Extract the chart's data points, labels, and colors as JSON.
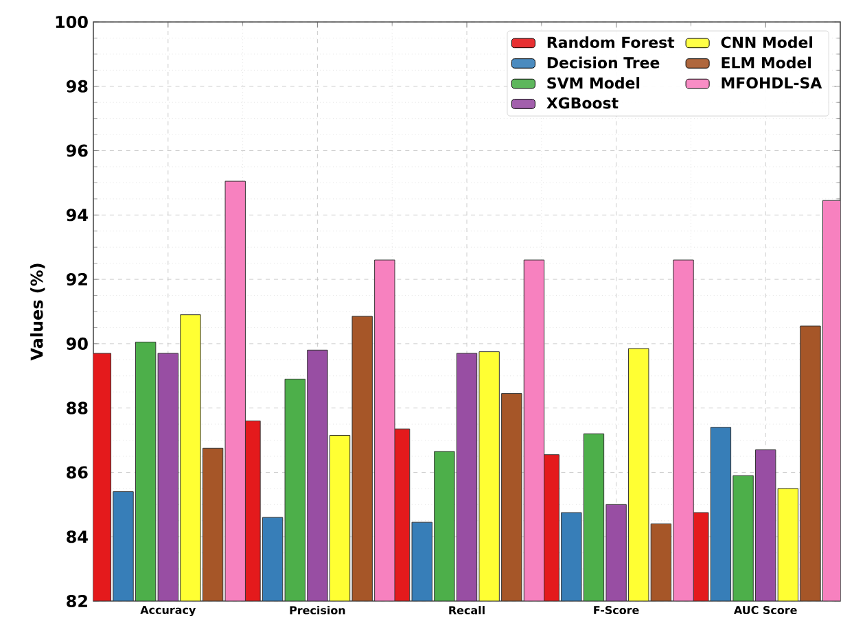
{
  "chart_data": {
    "type": "bar",
    "ylabel": "Values (%)",
    "categories": [
      "Accuracy",
      "Precision",
      "Recall",
      "F-Score",
      "AUC Score"
    ],
    "series": [
      {
        "name": "Random Forest",
        "color": "#e41a1c",
        "values": [
          89.7,
          87.6,
          87.35,
          86.55,
          84.75
        ]
      },
      {
        "name": "Decision Tree",
        "color": "#377eb8",
        "values": [
          85.4,
          84.6,
          84.45,
          84.75,
          87.4
        ]
      },
      {
        "name": "SVM Model",
        "color": "#4daf4a",
        "values": [
          90.05,
          88.9,
          86.65,
          87.2,
          85.9
        ]
      },
      {
        "name": "XGBoost",
        "color": "#984ea3",
        "values": [
          89.7,
          89.8,
          89.7,
          85.0,
          86.7
        ]
      },
      {
        "name": "CNN Model",
        "color": "#ffff33",
        "values": [
          90.9,
          87.15,
          89.75,
          89.85,
          85.5
        ]
      },
      {
        "name": "ELM Model",
        "color": "#a65628",
        "values": [
          86.75,
          90.85,
          88.45,
          84.4,
          90.55
        ]
      },
      {
        "name": "MFOHDL-SA",
        "color": "#f781bf",
        "values": [
          95.05,
          92.6,
          92.6,
          92.6,
          94.45
        ]
      }
    ],
    "ylim": [
      82,
      100
    ],
    "yticks": [
      82,
      84,
      86,
      88,
      90,
      92,
      94,
      96,
      98,
      100
    ],
    "grid": true,
    "legend": "top right"
  }
}
